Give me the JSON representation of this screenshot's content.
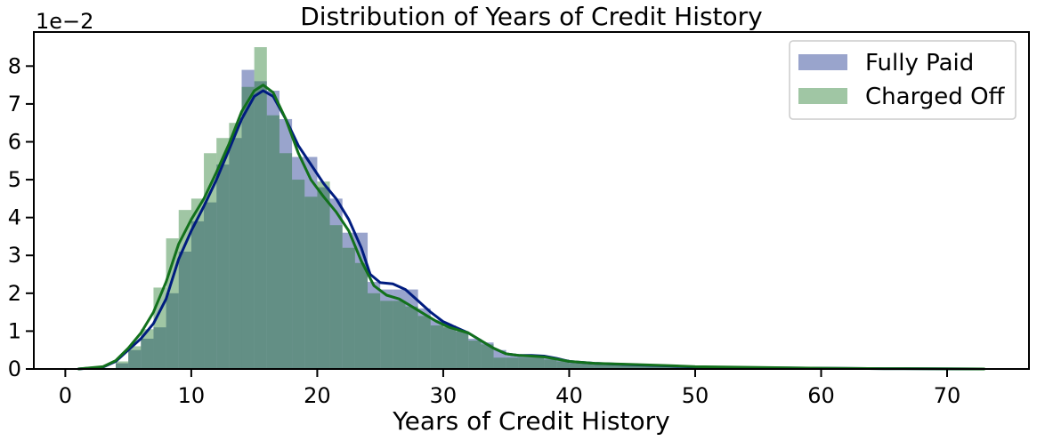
{
  "chart_data": {
    "type": "histogram",
    "title": "Distribution of Years of Credit History",
    "xlabel": "Years of Credit History",
    "ylabel": "",
    "y_offset_label": "1e−2",
    "y_scale_factor": 0.01,
    "xlim": [
      -2.5,
      76.5
    ],
    "ylim": [
      0,
      8.9
    ],
    "x_ticks": [
      0,
      10,
      20,
      30,
      40,
      50,
      60,
      70
    ],
    "y_ticks": [
      0,
      1,
      2,
      3,
      4,
      5,
      6,
      7,
      8
    ],
    "grid": false,
    "legend_position": "top-right",
    "series": [
      {
        "name": "Fully Paid",
        "color": "#001c7f",
        "hist_color": "#001c7f",
        "hist_opacity": 0.4,
        "bins": [
          [
            4.0,
            5.0,
            0.15
          ],
          [
            5.0,
            6.0,
            0.5
          ],
          [
            6.0,
            7.0,
            0.8
          ],
          [
            7.0,
            8.0,
            1.1
          ],
          [
            8.0,
            9.0,
            2.0
          ],
          [
            9.0,
            10.0,
            3.1
          ],
          [
            10.0,
            11.0,
            3.9
          ],
          [
            11.0,
            12.0,
            4.4
          ],
          [
            12.0,
            13.0,
            5.4
          ],
          [
            13.0,
            14.0,
            6.1
          ],
          [
            14.0,
            15.0,
            7.9
          ],
          [
            15.0,
            16.0,
            7.6
          ],
          [
            16.0,
            17.0,
            7.35
          ],
          [
            17.0,
            18.0,
            6.6
          ],
          [
            18.0,
            19.0,
            5.6
          ],
          [
            19.0,
            20.0,
            5.6
          ],
          [
            20.0,
            21.0,
            4.8
          ],
          [
            21.0,
            22.0,
            4.5
          ],
          [
            22.0,
            23.0,
            3.6
          ],
          [
            23.0,
            24.0,
            3.6
          ],
          [
            24.0,
            25.0,
            2.3
          ],
          [
            25.0,
            26.0,
            2.1
          ],
          [
            26.0,
            27.0,
            2.1
          ],
          [
            27.0,
            28.0,
            2.1
          ],
          [
            28.0,
            29.0,
            1.6
          ],
          [
            29.0,
            30.0,
            1.3
          ],
          [
            30.0,
            31.0,
            1.1
          ],
          [
            31.0,
            32.0,
            1.0
          ],
          [
            32.0,
            33.0,
            0.8
          ],
          [
            33.0,
            34.0,
            0.7
          ],
          [
            34.0,
            35.0,
            0.5
          ],
          [
            35.0,
            36.0,
            0.35
          ],
          [
            36.0,
            37.0,
            0.35
          ],
          [
            37.0,
            38.0,
            0.35
          ],
          [
            38.0,
            39.0,
            0.3
          ],
          [
            39.0,
            40.0,
            0.25
          ],
          [
            40.0,
            42.0,
            0.18
          ],
          [
            42.0,
            44.0,
            0.14
          ],
          [
            44.0,
            46.0,
            0.11
          ],
          [
            46.0,
            48.0,
            0.09
          ],
          [
            48.0,
            50.0,
            0.07
          ],
          [
            50.0,
            52.0,
            0.05
          ],
          [
            52.0,
            55.0,
            0.04
          ],
          [
            55.0,
            58.0,
            0.03
          ],
          [
            58.0,
            62.0,
            0.02
          ],
          [
            62.0,
            66.0,
            0.01
          ],
          [
            66.0,
            73.0,
            0.005
          ]
        ],
        "kde": [
          [
            1,
            0.0
          ],
          [
            3,
            0.05
          ],
          [
            4,
            0.2
          ],
          [
            5,
            0.5
          ],
          [
            6,
            0.8
          ],
          [
            7,
            1.2
          ],
          [
            8,
            1.85
          ],
          [
            9,
            2.9
          ],
          [
            10,
            3.65
          ],
          [
            11,
            4.3
          ],
          [
            12,
            5.0
          ],
          [
            13,
            5.8
          ],
          [
            14,
            6.6
          ],
          [
            15,
            7.2
          ],
          [
            15.7,
            7.35
          ],
          [
            16.5,
            7.2
          ],
          [
            17.5,
            6.6
          ],
          [
            18.5,
            5.9
          ],
          [
            19.5,
            5.4
          ],
          [
            20.5,
            4.9
          ],
          [
            21.5,
            4.5
          ],
          [
            22.5,
            3.95
          ],
          [
            23.5,
            3.2
          ],
          [
            24.2,
            2.5
          ],
          [
            25,
            2.28
          ],
          [
            26,
            2.25
          ],
          [
            27,
            2.1
          ],
          [
            28,
            1.8
          ],
          [
            29,
            1.5
          ],
          [
            30,
            1.25
          ],
          [
            31,
            1.1
          ],
          [
            32,
            0.95
          ],
          [
            33,
            0.75
          ],
          [
            34,
            0.55
          ],
          [
            35,
            0.4
          ],
          [
            36,
            0.36
          ],
          [
            37,
            0.36
          ],
          [
            38,
            0.34
          ],
          [
            39,
            0.28
          ],
          [
            40,
            0.2
          ],
          [
            42,
            0.15
          ],
          [
            45,
            0.11
          ],
          [
            48,
            0.08
          ],
          [
            50,
            0.05
          ],
          [
            55,
            0.03
          ],
          [
            60,
            0.02
          ],
          [
            65,
            0.01
          ],
          [
            73,
            0.0
          ]
        ]
      },
      {
        "name": "Charged Off",
        "color": "#12711c",
        "hist_color": "#12711c",
        "hist_opacity": 0.4,
        "bins": [
          [
            4.0,
            5.0,
            0.2
          ],
          [
            5.0,
            6.0,
            0.6
          ],
          [
            6.0,
            7.0,
            1.05
          ],
          [
            7.0,
            8.0,
            2.15
          ],
          [
            8.0,
            9.0,
            3.45
          ],
          [
            9.0,
            10.0,
            4.2
          ],
          [
            10.0,
            11.0,
            4.5
          ],
          [
            11.0,
            12.0,
            5.7
          ],
          [
            12.0,
            13.0,
            6.1
          ],
          [
            13.0,
            14.0,
            6.5
          ],
          [
            14.0,
            15.0,
            7.45
          ],
          [
            15.0,
            16.0,
            8.5
          ],
          [
            16.0,
            17.0,
            6.7
          ],
          [
            17.0,
            18.0,
            5.7
          ],
          [
            18.0,
            19.0,
            5.0
          ],
          [
            19.0,
            20.0,
            4.55
          ],
          [
            20.0,
            21.0,
            4.95
          ],
          [
            21.0,
            22.0,
            3.8
          ],
          [
            22.0,
            23.0,
            3.2
          ],
          [
            23.0,
            24.0,
            2.8
          ],
          [
            24.0,
            25.0,
            2.0
          ],
          [
            25.0,
            26.0,
            1.8
          ],
          [
            26.0,
            27.0,
            1.8
          ],
          [
            27.0,
            28.0,
            1.65
          ],
          [
            28.0,
            29.0,
            1.4
          ],
          [
            29.0,
            30.0,
            1.15
          ],
          [
            30.0,
            31.0,
            1.15
          ],
          [
            31.0,
            32.0,
            1.0
          ],
          [
            32.0,
            33.0,
            0.75
          ],
          [
            33.0,
            34.0,
            0.65
          ],
          [
            34.0,
            35.0,
            0.3
          ],
          [
            35.0,
            36.0,
            0.3
          ],
          [
            36.0,
            37.0,
            0.3
          ],
          [
            37.0,
            38.0,
            0.3
          ],
          [
            38.0,
            39.0,
            0.25
          ],
          [
            39.0,
            40.0,
            0.2
          ],
          [
            40.0,
            42.0,
            0.15
          ],
          [
            42.0,
            44.0,
            0.12
          ],
          [
            44.0,
            46.0,
            0.1
          ],
          [
            46.0,
            48.0,
            0.08
          ],
          [
            48.0,
            50.0,
            0.07
          ],
          [
            50.0,
            52.0,
            0.05
          ],
          [
            52.0,
            55.0,
            0.04
          ],
          [
            55.0,
            58.0,
            0.03
          ],
          [
            58.0,
            62.0,
            0.02
          ],
          [
            62.0,
            66.0,
            0.01
          ],
          [
            66.0,
            73.0,
            0.005
          ]
        ],
        "kde": [
          [
            1,
            0.0
          ],
          [
            3,
            0.06
          ],
          [
            4,
            0.22
          ],
          [
            5,
            0.55
          ],
          [
            6,
            0.95
          ],
          [
            7,
            1.5
          ],
          [
            8,
            2.3
          ],
          [
            9,
            3.3
          ],
          [
            10,
            3.95
          ],
          [
            11,
            4.5
          ],
          [
            12,
            5.2
          ],
          [
            13,
            5.95
          ],
          [
            14,
            6.8
          ],
          [
            15,
            7.35
          ],
          [
            15.7,
            7.5
          ],
          [
            16.5,
            7.3
          ],
          [
            17.5,
            6.6
          ],
          [
            18.5,
            5.7
          ],
          [
            19.5,
            5.0
          ],
          [
            20.5,
            4.55
          ],
          [
            21.5,
            4.15
          ],
          [
            22.5,
            3.65
          ],
          [
            23.5,
            2.85
          ],
          [
            24.5,
            2.2
          ],
          [
            25.5,
            1.95
          ],
          [
            26.5,
            1.85
          ],
          [
            27.5,
            1.65
          ],
          [
            28.5,
            1.45
          ],
          [
            29.5,
            1.25
          ],
          [
            30.5,
            1.1
          ],
          [
            32,
            0.95
          ],
          [
            33,
            0.75
          ],
          [
            34,
            0.55
          ],
          [
            35,
            0.4
          ],
          [
            36,
            0.36
          ],
          [
            37,
            0.34
          ],
          [
            38,
            0.32
          ],
          [
            39,
            0.26
          ],
          [
            40,
            0.2
          ],
          [
            42,
            0.15
          ],
          [
            45,
            0.12
          ],
          [
            48,
            0.09
          ],
          [
            50,
            0.06
          ],
          [
            55,
            0.04
          ],
          [
            60,
            0.02
          ],
          [
            65,
            0.01
          ],
          [
            73,
            0.0
          ]
        ]
      }
    ]
  }
}
